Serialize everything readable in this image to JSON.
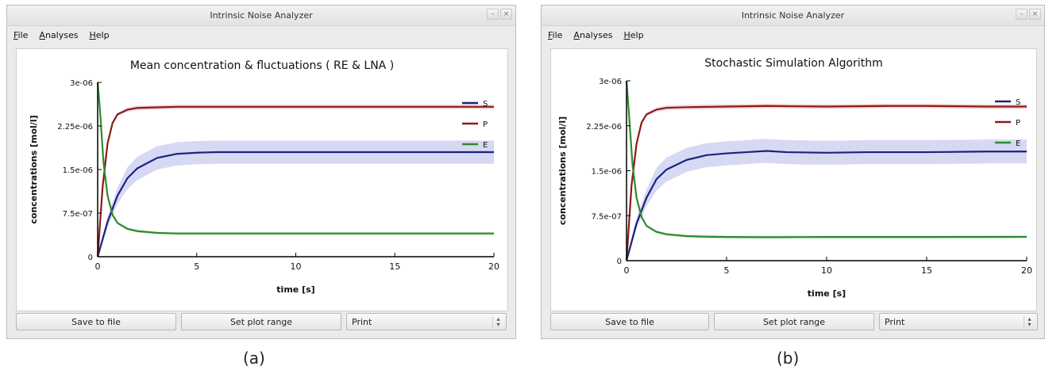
{
  "windows": [
    {
      "title": "Intrinsic Noise Analyzer",
      "menu": [
        "File",
        "Analyses",
        "Help"
      ],
      "buttons": {
        "save": "Save to file",
        "range": "Set plot range",
        "print": "Print"
      },
      "caption": "(a)"
    },
    {
      "title": "Intrinsic Noise Analyzer",
      "menu": [
        "File",
        "Analyses",
        "Help"
      ],
      "buttons": {
        "save": "Save to file",
        "range": "Set plot range",
        "print": "Print"
      },
      "caption": "(b)"
    }
  ],
  "chart_data": [
    {
      "type": "line",
      "title": "Mean concentration & fluctuations ( RE & LNA )",
      "xlabel": "time [s]",
      "ylabel": "concentrations [mol/l]",
      "xlim": [
        0,
        20
      ],
      "ylim": [
        0,
        3e-06
      ],
      "xticks": [
        "0",
        "5",
        "10",
        "15",
        "20"
      ],
      "yticks": [
        "0",
        "7.5e-07",
        "1.5e-06",
        "2.25e-06",
        "3e-06"
      ],
      "legend": "top-right",
      "series": [
        {
          "name": "S",
          "color": "#1a237e",
          "band": "#c9cbf0",
          "x": [
            0,
            0.5,
            1,
            1.5,
            2,
            3,
            4,
            5,
            6,
            8,
            10,
            15,
            20
          ],
          "values": [
            0,
            6e-07,
            1.05e-06,
            1.35e-06,
            1.52e-06,
            1.7e-06,
            1.77e-06,
            1.79e-06,
            1.8e-06,
            1.8e-06,
            1.8e-06,
            1.8e-06,
            1.8e-06
          ],
          "band_width": 2e-07
        },
        {
          "name": "P",
          "color": "#8b1a1a",
          "band": "#f0cccc",
          "x": [
            0,
            0.25,
            0.5,
            0.75,
            1,
            1.5,
            2,
            3,
            4,
            5,
            10,
            15,
            20
          ],
          "values": [
            0,
            1.2e-06,
            1.95e-06,
            2.3e-06,
            2.45e-06,
            2.53e-06,
            2.56e-06,
            2.57e-06,
            2.58e-06,
            2.58e-06,
            2.58e-06,
            2.58e-06,
            2.58e-06
          ],
          "band_width": 4e-08
        },
        {
          "name": "E",
          "color": "#2e8b2e",
          "band": "#c9ecc9",
          "x": [
            0,
            0.1,
            0.3,
            0.5,
            0.75,
            1,
            1.5,
            2,
            3,
            4,
            5,
            10,
            15,
            20
          ],
          "values": [
            3e-06,
            2.6e-06,
            1.6e-06,
            1.05e-06,
            7.2e-07,
            5.8e-07,
            4.8e-07,
            4.4e-07,
            4.1e-07,
            4e-07,
            4e-07,
            4e-07,
            4e-07,
            4e-07
          ],
          "band_width": 2.5e-08
        }
      ]
    },
    {
      "type": "line",
      "title": "Stochastic Simulation Algorithm",
      "xlabel": "time [s]",
      "ylabel": "concentrations [mol/l]",
      "xlim": [
        0,
        20
      ],
      "ylim": [
        0,
        3e-06
      ],
      "xticks": [
        "0",
        "5",
        "10",
        "15",
        "20"
      ],
      "yticks": [
        "0",
        "7.5e-07",
        "1.5e-06",
        "2.25e-06",
        "3e-06"
      ],
      "legend": "top-right",
      "series": [
        {
          "name": "S",
          "color": "#1a237e",
          "band": "#c9cbf0",
          "x": [
            0,
            0.5,
            1,
            1.5,
            2,
            3,
            4,
            5,
            6,
            7,
            8,
            10,
            12,
            15,
            18,
            20
          ],
          "values": [
            0,
            6.2e-07,
            1.05e-06,
            1.36e-06,
            1.52e-06,
            1.68e-06,
            1.76e-06,
            1.79e-06,
            1.81e-06,
            1.83e-06,
            1.81e-06,
            1.8e-06,
            1.81e-06,
            1.81e-06,
            1.82e-06,
            1.82e-06
          ],
          "band_width": 2e-07
        },
        {
          "name": "P",
          "color": "#8b1a1a",
          "band": "#f0cccc",
          "x": [
            0,
            0.25,
            0.5,
            0.75,
            1,
            1.5,
            2,
            3,
            5,
            7,
            10,
            13,
            15,
            18,
            20
          ],
          "values": [
            0,
            1.25e-06,
            1.95e-06,
            2.3e-06,
            2.44e-06,
            2.52e-06,
            2.55e-06,
            2.56e-06,
            2.57e-06,
            2.58e-06,
            2.57e-06,
            2.58e-06,
            2.58e-06,
            2.57e-06,
            2.57e-06
          ],
          "band_width": 4e-08
        },
        {
          "name": "E",
          "color": "#2e8b2e",
          "band": "#c9ecc9",
          "x": [
            0,
            0.1,
            0.3,
            0.5,
            0.75,
            1,
            1.5,
            2,
            3,
            4,
            5,
            7,
            10,
            15,
            20
          ],
          "values": [
            3e-06,
            2.55e-06,
            1.6e-06,
            1.05e-06,
            7.3e-07,
            5.8e-07,
            4.8e-07,
            4.4e-07,
            4.1e-07,
            4e-07,
            3.95e-07,
            3.92e-07,
            3.95e-07,
            3.95e-07,
            3.97e-07
          ],
          "band_width": 2.5e-08
        }
      ]
    }
  ]
}
